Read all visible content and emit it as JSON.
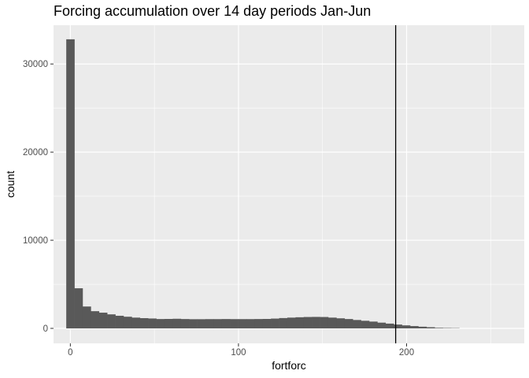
{
  "chart_data": {
    "type": "bar",
    "title": "Forcing accumulation over 14 day periods Jan-Jun",
    "xlabel": "fortforc",
    "ylabel": "count",
    "xlim": [
      -10,
      270
    ],
    "ylim": [
      -1700,
      34400
    ],
    "x_ticks": [
      0,
      100,
      200
    ],
    "x_tick_labels": [
      "0",
      "100",
      "200"
    ],
    "y_ticks": [
      0,
      10000,
      20000,
      30000
    ],
    "y_tick_labels": [
      "0",
      "10000",
      "20000",
      "30000"
    ],
    "x_minor_ticks": [
      50,
      150,
      250
    ],
    "y_minor_ticks": [
      5000,
      15000,
      25000
    ],
    "grid": true,
    "panel_color": "#ebebeb",
    "bar_color": "#595959",
    "vline": {
      "x": 193.5,
      "color": "#000000"
    },
    "bin_width": 4.87,
    "bin_start": -2.435,
    "values": [
      32800,
      4550,
      2480,
      1950,
      1780,
      1590,
      1430,
      1320,
      1220,
      1160,
      1120,
      1060,
      1070,
      1090,
      1060,
      1040,
      1040,
      1050,
      1050,
      1060,
      1050,
      1050,
      1050,
      1060,
      1070,
      1110,
      1170,
      1220,
      1260,
      1290,
      1300,
      1290,
      1220,
      1140,
      1060,
      950,
      860,
      770,
      650,
      540,
      430,
      340,
      260,
      190,
      130,
      60,
      40,
      30
    ]
  }
}
